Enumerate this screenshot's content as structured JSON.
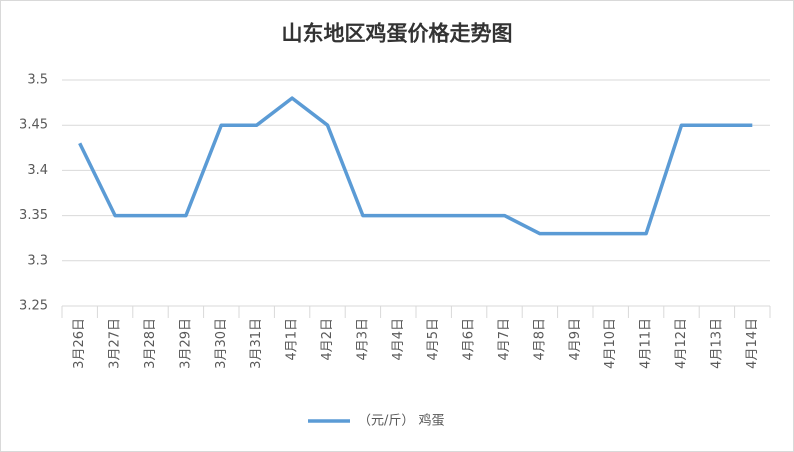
{
  "chart_data": {
    "type": "line",
    "title": "山东地区鸡蛋价格走势图",
    "categories": [
      "3月26日",
      "3月27日",
      "3月28日",
      "3月29日",
      "3月30日",
      "3月31日",
      "4月1日",
      "4月2日",
      "4月3日",
      "4月4日",
      "4月5日",
      "4月6日",
      "4月7日",
      "4月8日",
      "4月9日",
      "4月10日",
      "4月11日",
      "4月12日",
      "4月13日",
      "4月14日"
    ],
    "series": [
      {
        "name": "（元/斤） 鸡蛋",
        "color": "#5b9bd5",
        "values": [
          3.43,
          3.35,
          3.35,
          3.35,
          3.45,
          3.45,
          3.48,
          3.45,
          3.35,
          3.35,
          3.35,
          3.35,
          3.35,
          3.33,
          3.33,
          3.33,
          3.33,
          3.45,
          3.45,
          3.45
        ]
      }
    ],
    "ylim": [
      3.25,
      3.5
    ],
    "yticks": [
      3.25,
      3.3,
      3.35,
      3.4,
      3.45,
      3.5
    ],
    "grid": true,
    "legend": "bottom"
  }
}
